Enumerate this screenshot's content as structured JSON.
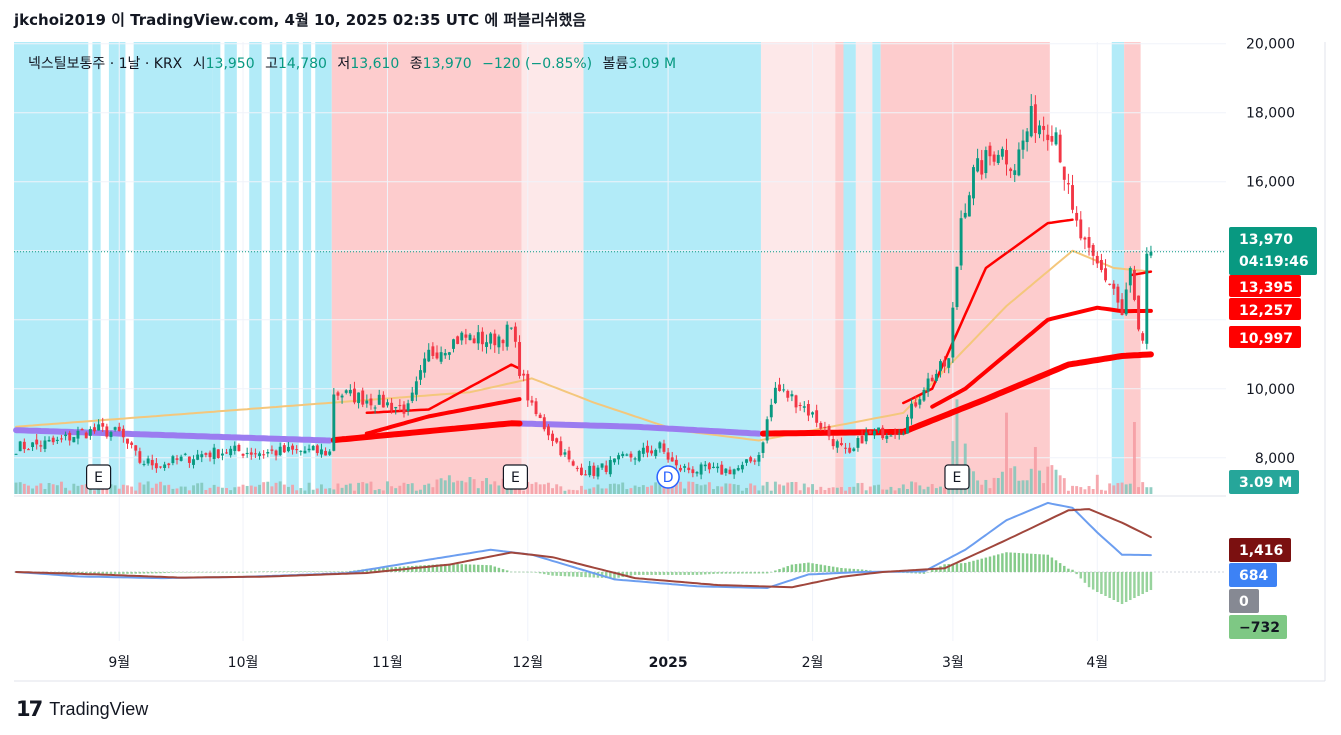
{
  "header": {
    "text": "jkchoi2019 이 TradingView.com, 4월 10, 2025 02:35 UTC 에 퍼블리쉬했음"
  },
  "legend": {
    "symbol": "넥스틸보통주 · 1날 · KRX",
    "open_label": "시",
    "open": "13,950",
    "high_label": "고",
    "high": "14,780",
    "low_label": "저",
    "low": "13,610",
    "close_label": "종",
    "close": "13,970",
    "change": "−120 (−0.85%)",
    "volume_label": "볼륨",
    "volume": "3.09 M"
  },
  "price_badges": {
    "last": "13,970",
    "countdown": "04:19:46",
    "ma_short": "13,395",
    "ma_mid": "12,257",
    "ma_long": "10,997",
    "volume": "3.09 M"
  },
  "macd_badges": {
    "signal": "1,416",
    "macd": "684",
    "zero": "0",
    "hist": "−732"
  },
  "event_markers": [
    {
      "label": "E",
      "date_index": 20
    },
    {
      "label": "E",
      "date_index": 121
    },
    {
      "label": "D",
      "date_index": 158
    },
    {
      "label": "E",
      "date_index": 228
    }
  ],
  "footer": {
    "brand": "TradingView",
    "mark": "17"
  },
  "colors": {
    "up": "#089981",
    "down": "#f23645",
    "bg_blue": "#b2ebf8",
    "bg_red": "#fdcccd",
    "bg_pink": "#fde8e9",
    "ema_purple": "#9b7cf0",
    "ema_red": "#ff0000",
    "ema_gold": "#f4c77c",
    "macd_blue": "#6c9ef0",
    "signal_brown": "#a0463c",
    "hist_green": "#7ec884"
  },
  "chart_data": {
    "type": "candlestick",
    "title": "넥스틸보통주 · 1날 · KRX",
    "y_ticks": [
      8000,
      10000,
      12000,
      14000,
      16000,
      18000,
      20000
    ],
    "y_tick_labels": [
      "8,000",
      "10,000",
      "",
      "",
      "16,000",
      "18,000",
      "20,000"
    ],
    "ylim": [
      6950,
      20050
    ],
    "x_tick_labels": [
      {
        "label": "9월",
        "date_index": 25
      },
      {
        "label": "10월",
        "date_index": 55
      },
      {
        "label": "11월",
        "date_index": 90
      },
      {
        "label": "12월",
        "date_index": 124
      },
      {
        "label": "2025",
        "date_index": 158
      },
      {
        "label": "2월",
        "date_index": 193
      },
      {
        "label": "3월",
        "date_index": 227
      },
      {
        "label": "4월",
        "date_index": 262
      }
    ],
    "n_days": 276,
    "price_keypoints": [
      [
        0,
        8300
      ],
      [
        10,
        8450
      ],
      [
        15,
        8700
      ],
      [
        20,
        8800
      ],
      [
        25,
        8700
      ],
      [
        30,
        7900
      ],
      [
        35,
        7800
      ],
      [
        45,
        8100
      ],
      [
        52,
        8200
      ],
      [
        60,
        8150
      ],
      [
        70,
        8200
      ],
      [
        76,
        8150
      ],
      [
        77,
        9900
      ],
      [
        85,
        9700
      ],
      [
        95,
        9400
      ],
      [
        100,
        11000
      ],
      [
        108,
        11500
      ],
      [
        115,
        11400
      ],
      [
        120,
        11700
      ],
      [
        122,
        10600
      ],
      [
        125,
        9400
      ],
      [
        130,
        8600
      ],
      [
        135,
        7700
      ],
      [
        140,
        7600
      ],
      [
        148,
        8000
      ],
      [
        156,
        8300
      ],
      [
        160,
        7700
      ],
      [
        170,
        7600
      ],
      [
        176,
        7700
      ],
      [
        180,
        8100
      ],
      [
        184,
        10000
      ],
      [
        190,
        9600
      ],
      [
        194,
        9100
      ],
      [
        198,
        8500
      ],
      [
        202,
        8000
      ],
      [
        205,
        8600
      ],
      [
        215,
        8900
      ],
      [
        220,
        10100
      ],
      [
        226,
        10800
      ],
      [
        229,
        15000
      ],
      [
        232,
        16200
      ],
      [
        238,
        17000
      ],
      [
        242,
        16500
      ],
      [
        246,
        17800
      ],
      [
        252,
        17500
      ],
      [
        256,
        15000
      ],
      [
        260,
        13800
      ],
      [
        263,
        13400
      ],
      [
        266,
        12900
      ],
      [
        268,
        12100
      ],
      [
        270,
        13400
      ],
      [
        272,
        11600
      ],
      [
        273,
        11200
      ],
      [
        274,
        13700
      ],
      [
        275,
        13970
      ]
    ],
    "ema_short_keypoints": [
      [
        0,
        8750
      ],
      [
        100,
        9400
      ],
      [
        120,
        10700
      ],
      [
        150,
        9000
      ],
      [
        180,
        8300
      ],
      [
        200,
        8700
      ],
      [
        222,
        10000
      ],
      [
        235,
        13500
      ],
      [
        250,
        14800
      ],
      [
        256,
        14900
      ],
      [
        262,
        13800
      ],
      [
        268,
        13250
      ],
      [
        275,
        13395
      ]
    ],
    "ema_mid_keypoints": [
      [
        0,
        8700
      ],
      [
        76,
        8400
      ],
      [
        100,
        9200
      ],
      [
        122,
        9700
      ],
      [
        150,
        8900
      ],
      [
        180,
        8650
      ],
      [
        210,
        8700
      ],
      [
        230,
        10000
      ],
      [
        250,
        12000
      ],
      [
        262,
        12350
      ],
      [
        268,
        12250
      ],
      [
        275,
        12257
      ]
    ],
    "ema_long_keypoints": [
      [
        0,
        8800
      ],
      [
        76,
        8500
      ],
      [
        120,
        9000
      ],
      [
        150,
        8900
      ],
      [
        180,
        8700
      ],
      [
        215,
        8750
      ],
      [
        235,
        9700
      ],
      [
        255,
        10700
      ],
      [
        268,
        10950
      ],
      [
        275,
        10997
      ]
    ],
    "ema_gold_keypoints": [
      [
        0,
        8900
      ],
      [
        110,
        9900
      ],
      [
        125,
        10300
      ],
      [
        140,
        9600
      ],
      [
        160,
        8800
      ],
      [
        180,
        8500
      ],
      [
        215,
        9300
      ],
      [
        240,
        12400
      ],
      [
        256,
        14000
      ],
      [
        266,
        13500
      ],
      [
        275,
        13395
      ]
    ],
    "macd_ylim": [
      -2800,
      3000
    ],
    "macd_keypoints": [
      [
        0,
        0
      ],
      [
        15,
        -180
      ],
      [
        35,
        -250
      ],
      [
        55,
        -200
      ],
      [
        80,
        -50
      ],
      [
        100,
        500
      ],
      [
        115,
        900
      ],
      [
        125,
        700
      ],
      [
        145,
        -300
      ],
      [
        165,
        -580
      ],
      [
        182,
        -650
      ],
      [
        192,
        -100
      ],
      [
        205,
        0
      ],
      [
        220,
        20
      ],
      [
        230,
        900
      ],
      [
        240,
        2100
      ],
      [
        250,
        2800
      ],
      [
        256,
        2600
      ],
      [
        262,
        1600
      ],
      [
        268,
        700
      ],
      [
        275,
        684
      ]
    ],
    "signal_keypoints": [
      [
        0,
        0
      ],
      [
        20,
        -100
      ],
      [
        40,
        -230
      ],
      [
        60,
        -190
      ],
      [
        85,
        -40
      ],
      [
        105,
        300
      ],
      [
        120,
        790
      ],
      [
        130,
        600
      ],
      [
        150,
        -250
      ],
      [
        170,
        -530
      ],
      [
        188,
        -620
      ],
      [
        200,
        -200
      ],
      [
        210,
        0
      ],
      [
        225,
        150
      ],
      [
        240,
        1300
      ],
      [
        255,
        2500
      ],
      [
        260,
        2550
      ],
      [
        268,
        2000
      ],
      [
        275,
        1416
      ]
    ],
    "last_close": 13970
  }
}
